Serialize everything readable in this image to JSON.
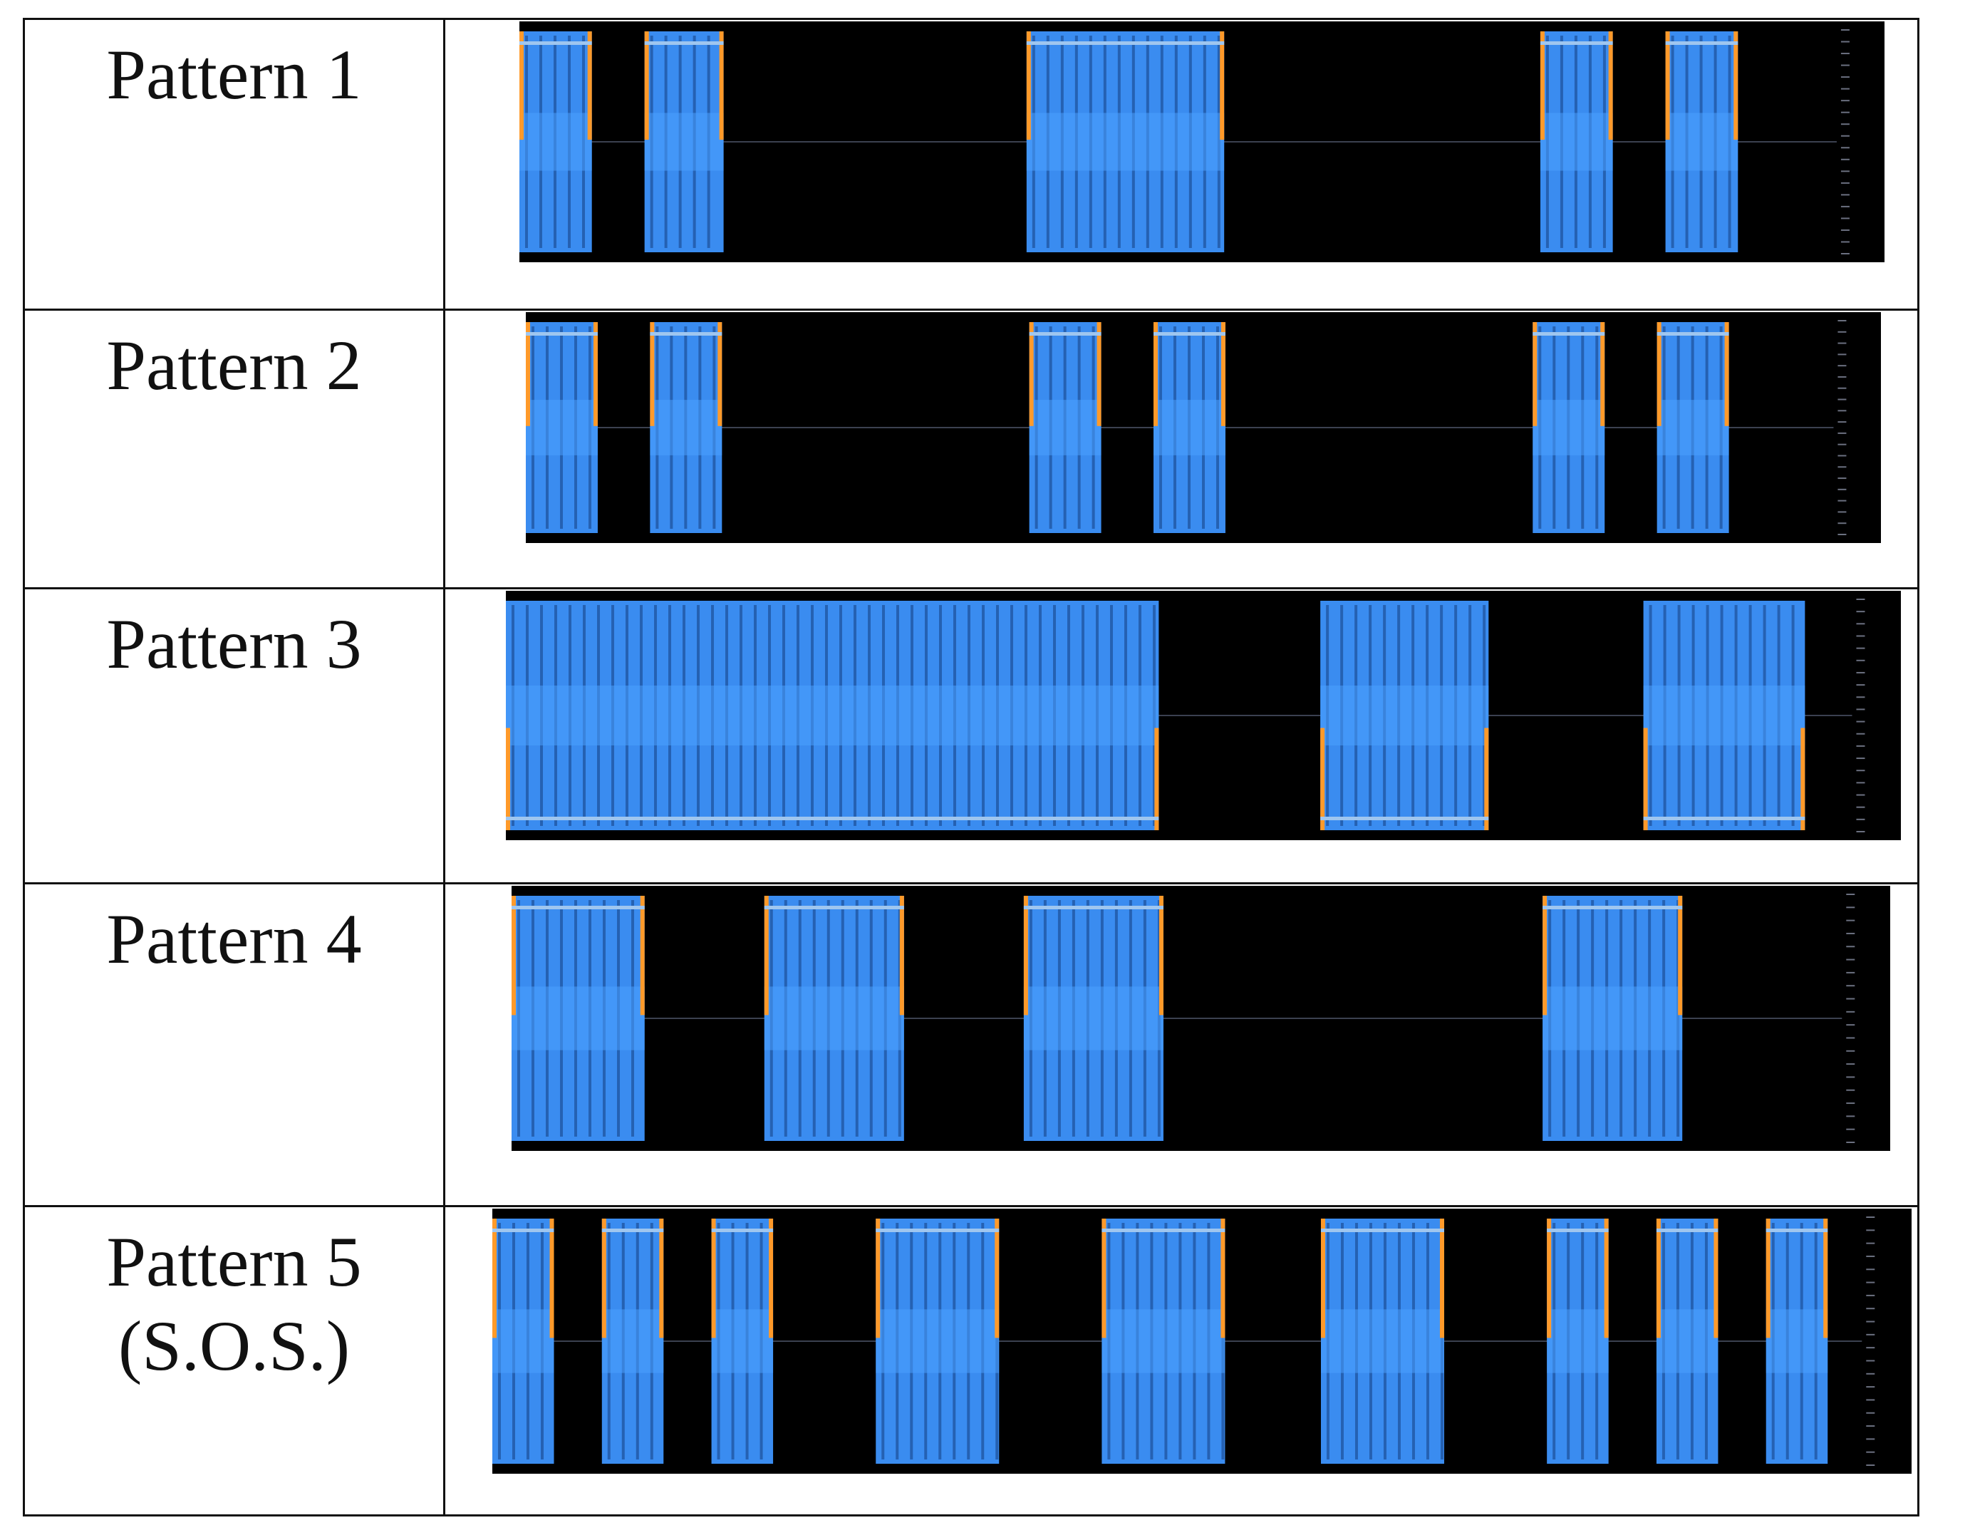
{
  "rows": [
    {
      "label": "Pattern 1",
      "label2": "",
      "pattern": "...--...",
      "symbols": "dot dot dash-long dot dot"
    },
    {
      "label": "Pattern 2",
      "label2": "",
      "pattern": "..  ..  ..",
      "symbols": "dot dot dot dot dot dot"
    },
    {
      "label": "Pattern 3",
      "label2": "",
      "pattern": "— . .",
      "symbols": "long dash, short, short"
    },
    {
      "label": "Pattern 4",
      "label2": "",
      "pattern": "- - - -",
      "symbols": "four medium pulses"
    },
    {
      "label": "Pattern 5",
      "label2": "(S.O.S.)",
      "pattern": "... --- ...",
      "symbols": "three short, three long, three short"
    }
  ],
  "colors": {
    "pulse": "#3a8cf0",
    "pulse_edge": "#ff9a2a",
    "background": "#000000",
    "border": "#111111"
  },
  "waveforms": [
    {
      "pulses": [
        [
          0.0,
          0.055
        ],
        [
          0.095,
          0.155
        ],
        [
          0.385,
          0.535
        ],
        [
          0.775,
          0.83
        ],
        [
          0.87,
          0.925
        ]
      ],
      "glow": "top"
    },
    {
      "pulses": [
        [
          0.0,
          0.055
        ],
        [
          0.095,
          0.15
        ],
        [
          0.385,
          0.44
        ],
        [
          0.48,
          0.535
        ],
        [
          0.77,
          0.825
        ],
        [
          0.865,
          0.92
        ]
      ],
      "glow": "top"
    },
    {
      "pulses": [
        [
          0.0,
          0.485
        ],
        [
          0.605,
          0.73
        ],
        [
          0.845,
          0.965
        ]
      ],
      "glow": "bottom"
    },
    {
      "pulses": [
        [
          0.0,
          0.1
        ],
        [
          0.19,
          0.295
        ],
        [
          0.385,
          0.49
        ],
        [
          0.775,
          0.88
        ]
      ],
      "glow": "top"
    },
    {
      "pulses": [
        [
          0.0,
          0.045
        ],
        [
          0.08,
          0.125
        ],
        [
          0.16,
          0.205
        ],
        [
          0.28,
          0.37
        ],
        [
          0.445,
          0.535
        ],
        [
          0.605,
          0.695
        ],
        [
          0.77,
          0.815
        ],
        [
          0.85,
          0.895
        ],
        [
          0.93,
          0.975
        ]
      ],
      "glow": "top"
    }
  ]
}
